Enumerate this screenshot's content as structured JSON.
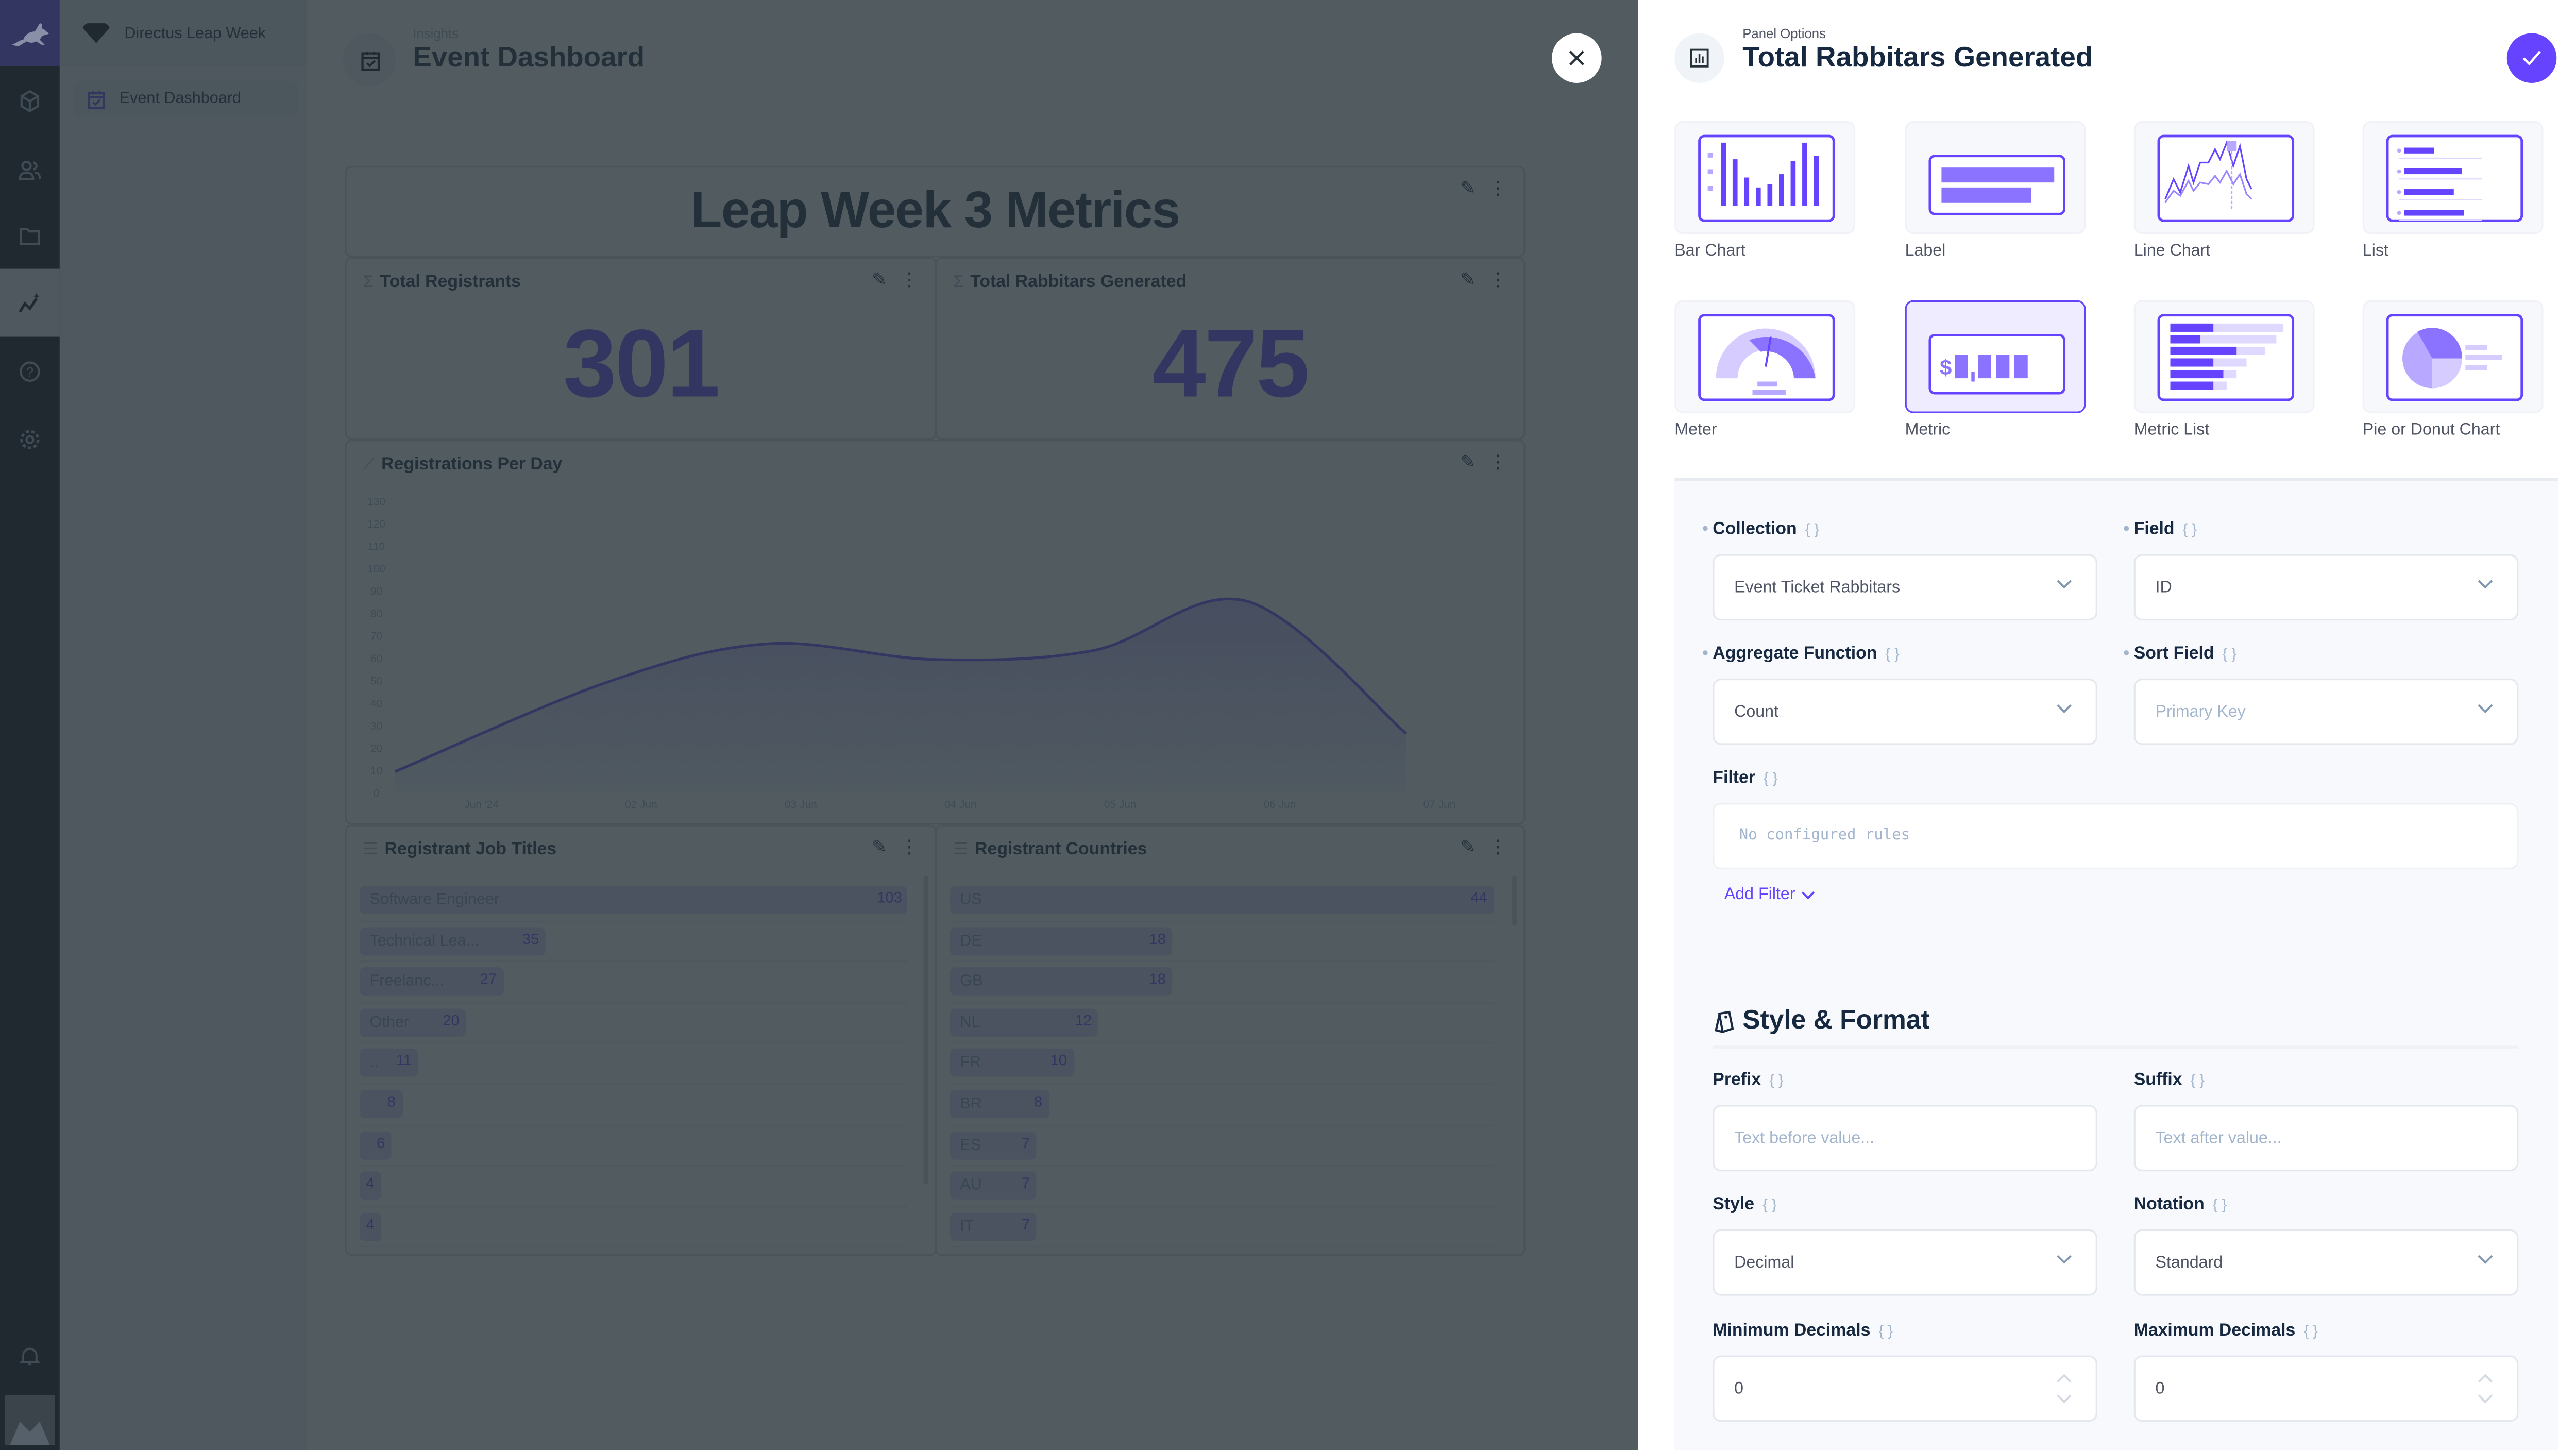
{
  "app": {
    "project_name": "Directus Leap Week",
    "accent": "#6644ff"
  },
  "module_bar": {
    "items": [
      {
        "name": "content",
        "icon": "cube-icon"
      },
      {
        "name": "users",
        "icon": "users-icon"
      },
      {
        "name": "files",
        "icon": "folder-icon"
      },
      {
        "name": "insights",
        "icon": "insights-icon",
        "active": true
      },
      {
        "name": "help",
        "icon": "help-icon"
      },
      {
        "name": "settings",
        "icon": "gear-icon"
      }
    ],
    "bottom": [
      {
        "name": "notifications",
        "icon": "bell-icon"
      },
      {
        "name": "user",
        "icon": "avatar"
      }
    ]
  },
  "nav": {
    "items": [
      {
        "label": "Event Dashboard",
        "icon": "calendar-check-icon"
      }
    ]
  },
  "header": {
    "breadcrumb": "Insights",
    "title": "Event Dashboard"
  },
  "dashboard": {
    "label_panel": {
      "text": "Leap Week 3 Metrics"
    },
    "metric_panels": [
      {
        "title": "Total Registrants",
        "value": "301"
      },
      {
        "title": "Total Rabbitars Generated",
        "value": "475"
      }
    ],
    "line_panel": {
      "title": "Registrations Per Day"
    },
    "job_titles": {
      "title": "Registrant Job Titles",
      "items": [
        {
          "label": "Software Engineer",
          "value": 103
        },
        {
          "label": "Technical Lea...",
          "value": 35
        },
        {
          "label": "Freelanc...",
          "value": 27
        },
        {
          "label": "Other",
          "value": 20
        },
        {
          "label": "...",
          "value": 11
        },
        {
          "label": "",
          "value": 8
        },
        {
          "label": "",
          "value": 6
        },
        {
          "label": "",
          "value": 4
        },
        {
          "label": "",
          "value": 4
        }
      ]
    },
    "countries": {
      "title": "Registrant Countries",
      "items": [
        {
          "label": "US",
          "value": 44
        },
        {
          "label": "DE",
          "value": 18
        },
        {
          "label": "GB",
          "value": 18
        },
        {
          "label": "NL",
          "value": 12
        },
        {
          "label": "FR",
          "value": 10
        },
        {
          "label": "BR",
          "value": 8
        },
        {
          "label": "ES",
          "value": 7
        },
        {
          "label": "AU",
          "value": 7
        },
        {
          "label": "IT",
          "value": 7
        }
      ]
    }
  },
  "chart_data": {
    "type": "area",
    "title": "Registrations Per Day",
    "x": [
      "2024-05-31T11:00",
      "2024-06-01T19:00",
      "2024-06-02T19:00",
      "2024-06-03T20:00",
      "2024-06-04T20:00",
      "2024-06-05T19:00",
      "2024-06-06T19:00"
    ],
    "values": [
      9,
      49,
      66,
      59,
      63,
      85,
      26
    ],
    "ylim": [
      0,
      130
    ],
    "yticks": [
      "0",
      "10",
      "20",
      "30",
      "40",
      "50",
      "60",
      "70",
      "80",
      "90",
      "100",
      "110",
      "120",
      "130"
    ],
    "xticks": [
      {
        "date": "2024-06-01",
        "label": "Jun '24"
      },
      {
        "date": "2024-06-02",
        "label": "02 Jun"
      },
      {
        "date": "2024-06-03",
        "label": "03 Jun"
      },
      {
        "date": "2024-06-04",
        "label": "04 Jun"
      },
      {
        "date": "2024-06-05",
        "label": "05 Jun"
      },
      {
        "date": "2024-06-06",
        "label": "06 Jun"
      },
      {
        "date": "2024-06-07",
        "label": "07 Jun"
      }
    ],
    "curve": "smooth",
    "color": "#6644ff",
    "grid": false
  },
  "drawer": {
    "subtitle": "Panel Options",
    "title": "Total Rabbitars Generated",
    "panel_types": [
      {
        "label": "Bar Chart",
        "icon": "bar-chart-icon"
      },
      {
        "label": "Label",
        "icon": "label-icon"
      },
      {
        "label": "Line Chart",
        "icon": "line-chart-icon"
      },
      {
        "label": "List",
        "icon": "list-icon"
      },
      {
        "label": "Meter",
        "icon": "meter-icon"
      },
      {
        "label": "Metric",
        "icon": "metric-icon",
        "selected": true
      },
      {
        "label": "Metric List",
        "icon": "metric-list-icon"
      },
      {
        "label": "Pie or Donut Chart",
        "icon": "pie-chart-icon"
      }
    ],
    "fields": {
      "collection": {
        "label": "Collection",
        "value": "Event Ticket Rabbitars"
      },
      "field": {
        "label": "Field",
        "value": "ID"
      },
      "aggregate": {
        "label": "Aggregate Function",
        "value": "Count"
      },
      "sort_field": {
        "label": "Sort Field",
        "placeholder": "Primary Key"
      },
      "filter": {
        "label": "Filter",
        "empty": "No configured rules",
        "add": "Add Filter"
      }
    },
    "style_section": {
      "heading": "Style & Format",
      "prefix": {
        "label": "Prefix",
        "placeholder": "Text before value..."
      },
      "suffix": {
        "label": "Suffix",
        "placeholder": "Text after value..."
      },
      "style": {
        "label": "Style",
        "value": "Decimal"
      },
      "notation": {
        "label": "Notation",
        "value": "Standard"
      },
      "min_decimals": {
        "label": "Minimum Decimals",
        "value": "0"
      },
      "max_decimals": {
        "label": "Maximum Decimals",
        "value": "0"
      }
    },
    "brace_glyph": "{ }"
  }
}
